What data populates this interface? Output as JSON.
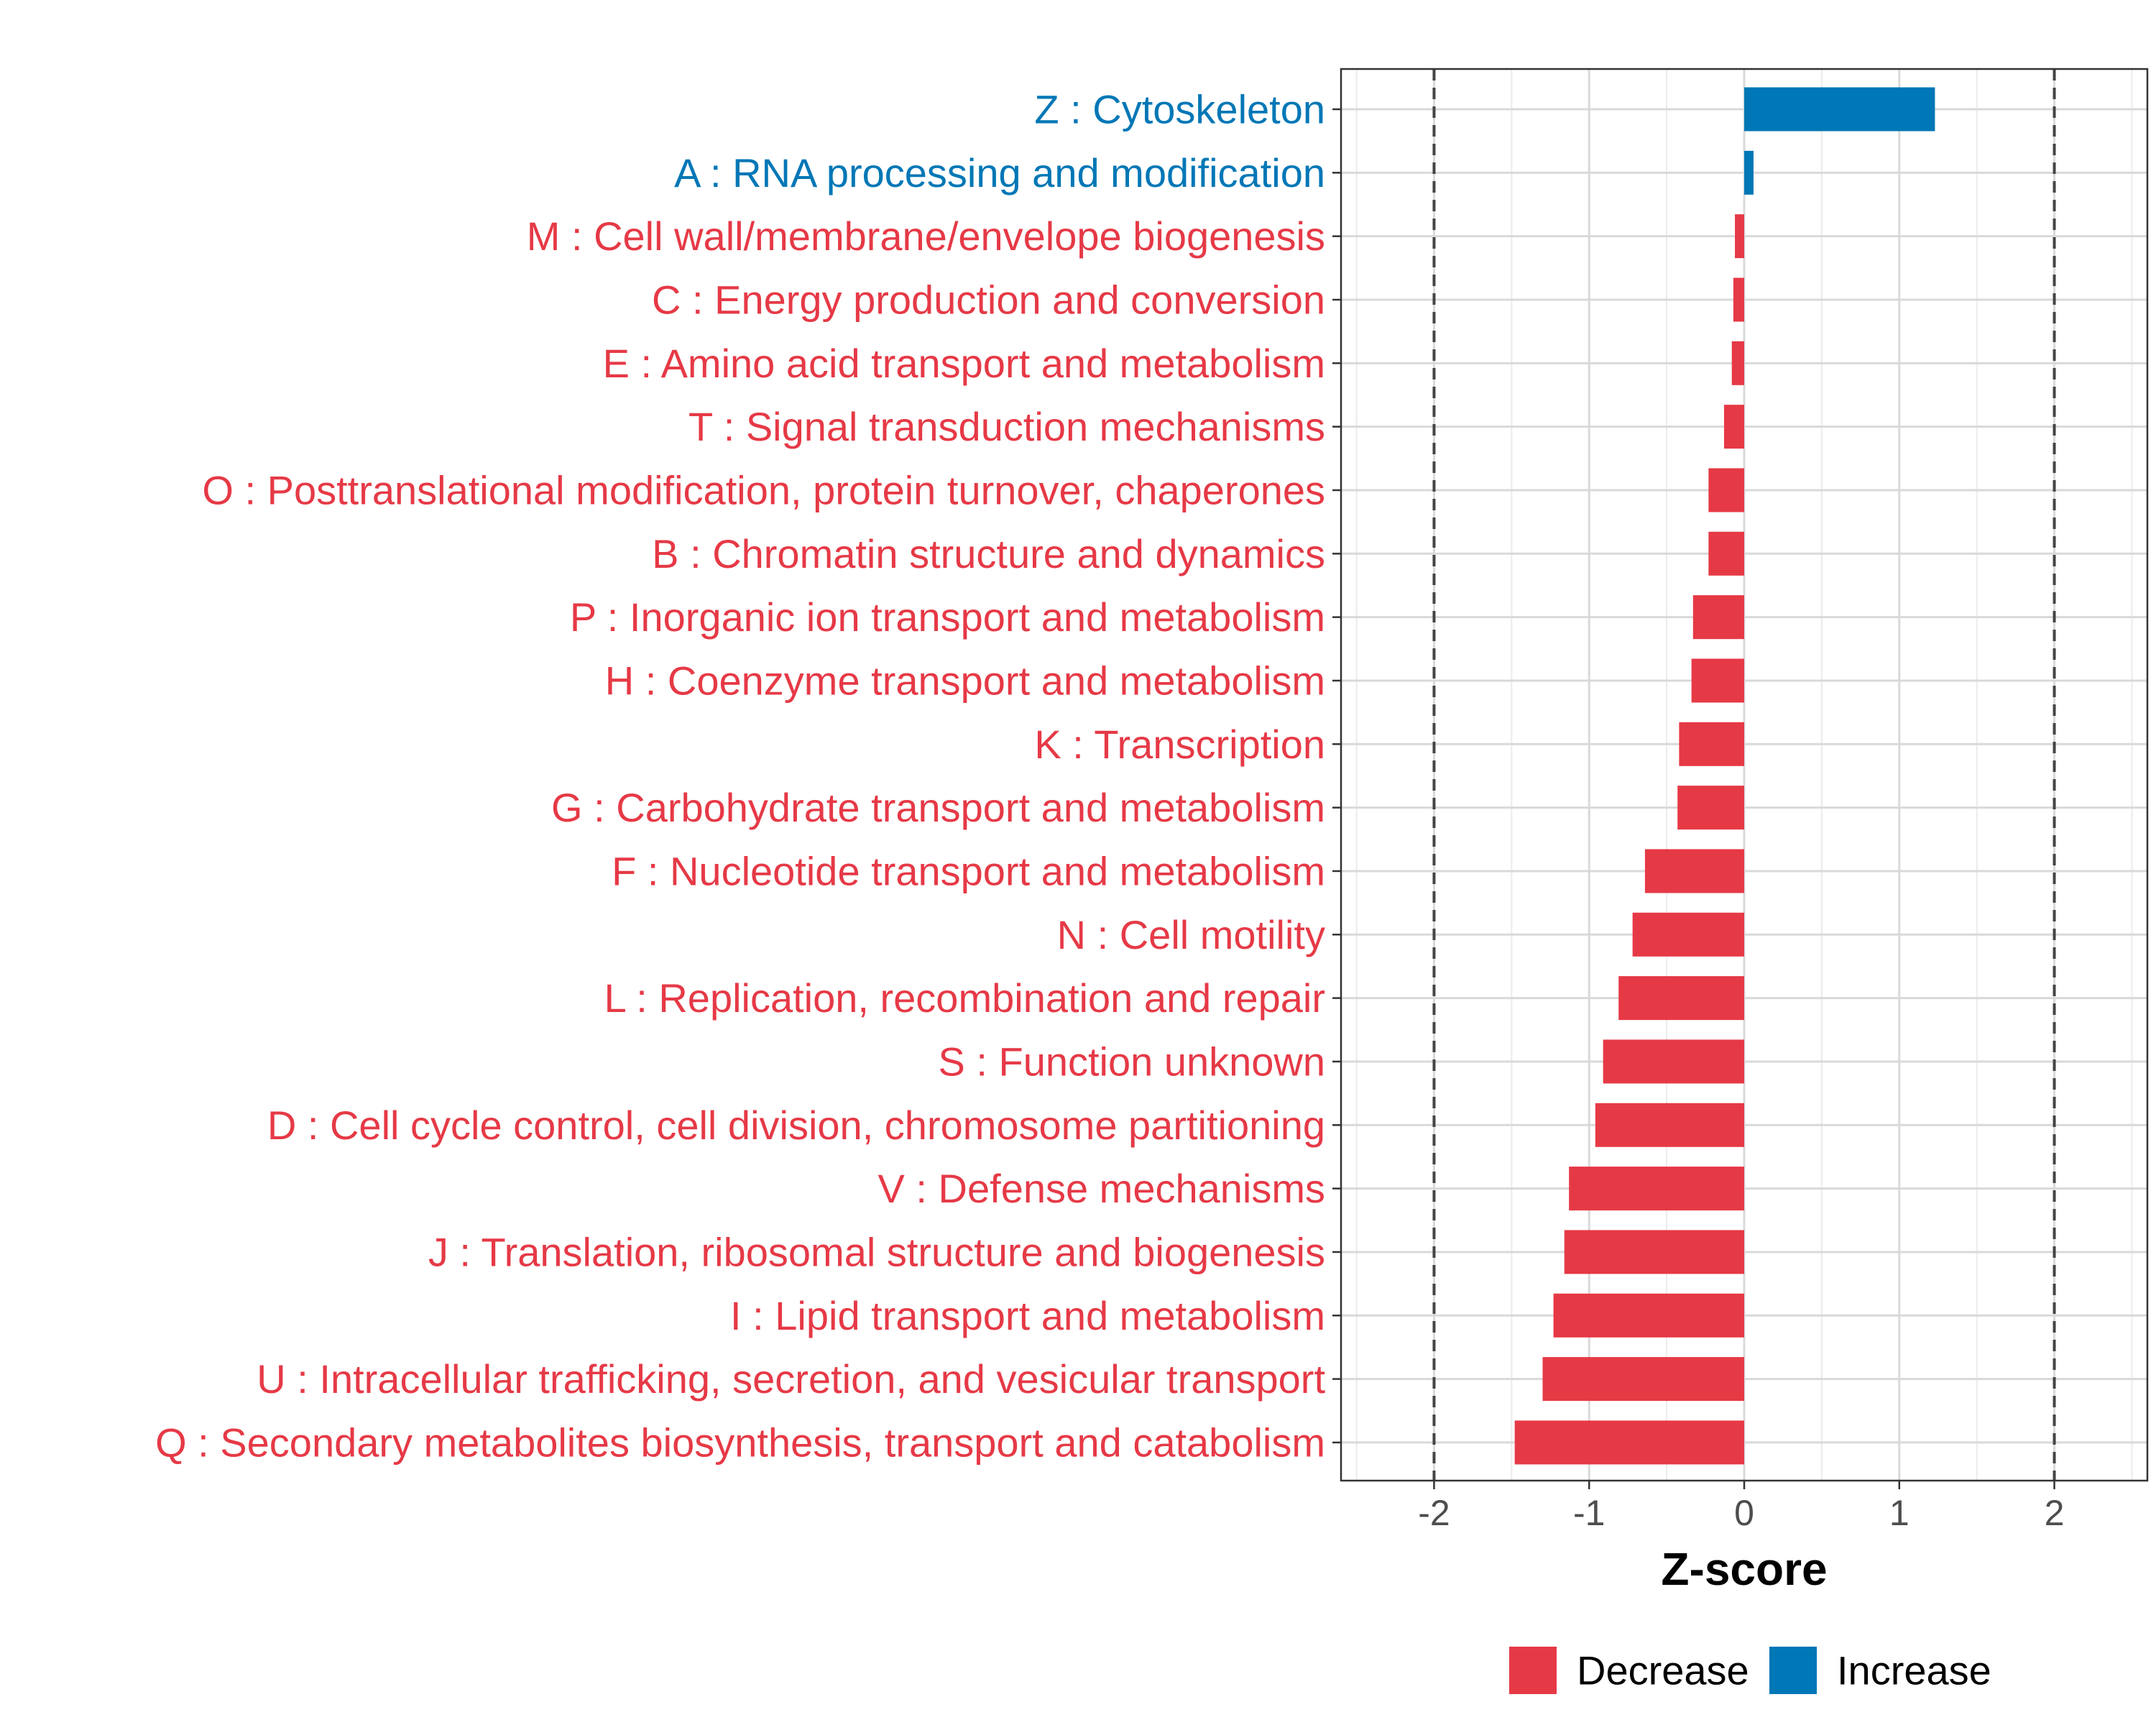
{
  "chart_data": {
    "type": "bar",
    "orientation": "horizontal",
    "title": "",
    "xlabel": "Z-score",
    "ylabel": "",
    "xlim": [
      -2.6,
      2.6
    ],
    "xticks": [
      -2,
      -1,
      0,
      1,
      2
    ],
    "xtick_labels": [
      "-2",
      "-1",
      "0",
      "1",
      "2"
    ],
    "reference_lines": [
      -2,
      2
    ],
    "grid": true,
    "legend": {
      "placement": "bottom",
      "items": [
        {
          "label": "Decrease",
          "color": "#E63946"
        },
        {
          "label": "Increase",
          "color": "#0077B6"
        }
      ]
    },
    "categories": [
      "Z : Cytoskeleton",
      "A : RNA processing and modification",
      "M : Cell wall/membrane/envelope biogenesis",
      "C : Energy production and conversion",
      "E : Amino acid transport and metabolism",
      "T : Signal transduction mechanisms",
      "O : Posttranslational modification, protein turnover, chaperones",
      "B : Chromatin structure and dynamics",
      "P : Inorganic ion transport and metabolism",
      "H : Coenzyme transport and metabolism",
      "K : Transcription",
      "G : Carbohydrate transport and metabolism",
      "F : Nucleotide transport and metabolism",
      "N : Cell motility",
      "L : Replication, recombination and repair",
      "S : Function unknown",
      "D : Cell cycle control, cell division, chromosome partitioning",
      "V : Defense mechanisms",
      "J : Translation, ribosomal structure and biogenesis",
      "I : Lipid transport and metabolism",
      "U : Intracellular trafficking, secretion, and vesicular transport",
      "Q : Secondary metabolites biosynthesis, transport and catabolism"
    ],
    "values": [
      1.23,
      0.06,
      -0.06,
      -0.07,
      -0.08,
      -0.13,
      -0.23,
      -0.23,
      -0.33,
      -0.34,
      -0.42,
      -0.43,
      -0.64,
      -0.72,
      -0.81,
      -0.91,
      -0.96,
      -1.13,
      -1.16,
      -1.23,
      -1.3,
      -1.48
    ],
    "directions": [
      "Increase",
      "Increase",
      "Decrease",
      "Decrease",
      "Decrease",
      "Decrease",
      "Decrease",
      "Decrease",
      "Decrease",
      "Decrease",
      "Decrease",
      "Decrease",
      "Decrease",
      "Decrease",
      "Decrease",
      "Decrease",
      "Decrease",
      "Decrease",
      "Decrease",
      "Decrease",
      "Decrease",
      "Decrease"
    ]
  }
}
